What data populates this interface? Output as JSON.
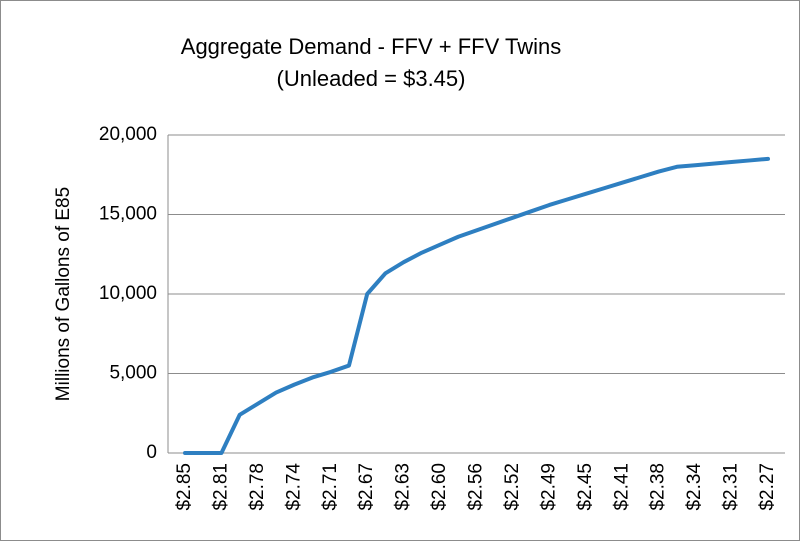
{
  "chart_data": {
    "type": "line",
    "title": "Aggregate Demand - FFV + FFV Twins",
    "subtitle": "(Unleaded = $3.45)",
    "y_label": "Millions of Gallons of E85",
    "categories": [
      "$2.85",
      null,
      "$2.81",
      null,
      "$2.78",
      null,
      "$2.74",
      null,
      "$2.71",
      null,
      "$2.67",
      null,
      "$2.63",
      null,
      "$2.60",
      null,
      "$2.56",
      null,
      "$2.52",
      null,
      "$2.49",
      null,
      "$2.45",
      null,
      "$2.41",
      null,
      "$2.38",
      null,
      "$2.34",
      null,
      "$2.31",
      null,
      "$2.27"
    ],
    "series": [
      {
        "name": "Aggregate Demand",
        "color": "#2e7fc1",
        "values": [
          0,
          0,
          0,
          2400,
          3100,
          3800,
          4300,
          4750,
          5100,
          5500,
          10000,
          11300,
          12000,
          12600,
          13100,
          13600,
          14000,
          14400,
          14800,
          15200,
          15600,
          15950,
          16300,
          16650,
          17000,
          17350,
          17700,
          18000,
          18100,
          18200,
          18300,
          18400,
          18500
        ]
      }
    ],
    "ylim": [
      0,
      20000
    ],
    "yticks": [
      0,
      {
        "value": 5000,
        "label": "5,000"
      },
      {
        "value": 10000,
        "label": "10,000"
      },
      {
        "value": 15000,
        "label": "15,000"
      },
      {
        "value": 20000,
        "label": "20,000"
      }
    ],
    "grid": true
  }
}
